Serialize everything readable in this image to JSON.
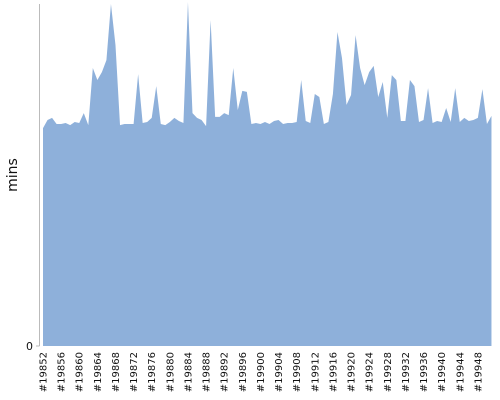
{
  "chart_data": {
    "type": "area",
    "y_label": "mins",
    "color": "#8eb0da",
    "categories": [
      "#19852",
      null,
      null,
      null,
      "#19856",
      null,
      null,
      null,
      "#19860",
      null,
      null,
      null,
      "#19864",
      null,
      null,
      null,
      "#19868",
      null,
      null,
      null,
      "#19872",
      null,
      null,
      null,
      "#19876",
      null,
      null,
      null,
      "#19880",
      null,
      null,
      null,
      "#19884",
      null,
      null,
      null,
      "#19888",
      null,
      null,
      null,
      "#19892",
      null,
      null,
      null,
      "#19896",
      null,
      null,
      null,
      "#19900",
      null,
      null,
      null,
      "#19904",
      null,
      null,
      null,
      "#19908",
      null,
      null,
      null,
      "#19912",
      null,
      null,
      null,
      "#19916",
      null,
      null,
      null,
      "#19920",
      null,
      null,
      null,
      "#19924",
      null,
      null,
      null,
      "#19928",
      null,
      null,
      null,
      "#19932",
      null,
      null,
      null,
      "#19936",
      null,
      null,
      null,
      "#19940",
      null,
      null,
      null,
      "#19944",
      null,
      null,
      null,
      "#19948",
      null,
      null,
      null
    ],
    "values": [
      63.7,
      66.1,
      66.7,
      64.9,
      64.9,
      65.2,
      64.6,
      65.5,
      65.2,
      68.1,
      64.6,
      81.3,
      77.8,
      80.1,
      83.6,
      100,
      88,
      64.6,
      64.9,
      64.9,
      64.9,
      79.5,
      65.2,
      65.5,
      66.7,
      76,
      64.9,
      64.6,
      65.5,
      66.7,
      65.8,
      65.2,
      100.6,
      68.1,
      66.7,
      66.1,
      64.3,
      95.3,
      67,
      67,
      68.1,
      67.5,
      81.3,
      69,
      74.6,
      74.3,
      64.9,
      65.2,
      64.9,
      65.5,
      64.9,
      65.8,
      66.1,
      64.9,
      65.2,
      65.2,
      65.5,
      77.8,
      65.8,
      65.2,
      73.7,
      72.8,
      64.9,
      65.5,
      73.7,
      91.8,
      84.2,
      70.5,
      73.4,
      90.9,
      81.3,
      76.3,
      80.1,
      81.9,
      72.8,
      77.2,
      66.7,
      79.2,
      77.8,
      65.8,
      65.8,
      77.8,
      76,
      65.5,
      66.1,
      75.4,
      65.2,
      65.8,
      65.5,
      69.6,
      65.5,
      75.4,
      65.5,
      66.7,
      65.8,
      66.1,
      66.7,
      75.1,
      64.9,
      67.3
    ],
    "ylim": [
      0,
      101
    ],
    "yticks": [
      0
    ]
  }
}
